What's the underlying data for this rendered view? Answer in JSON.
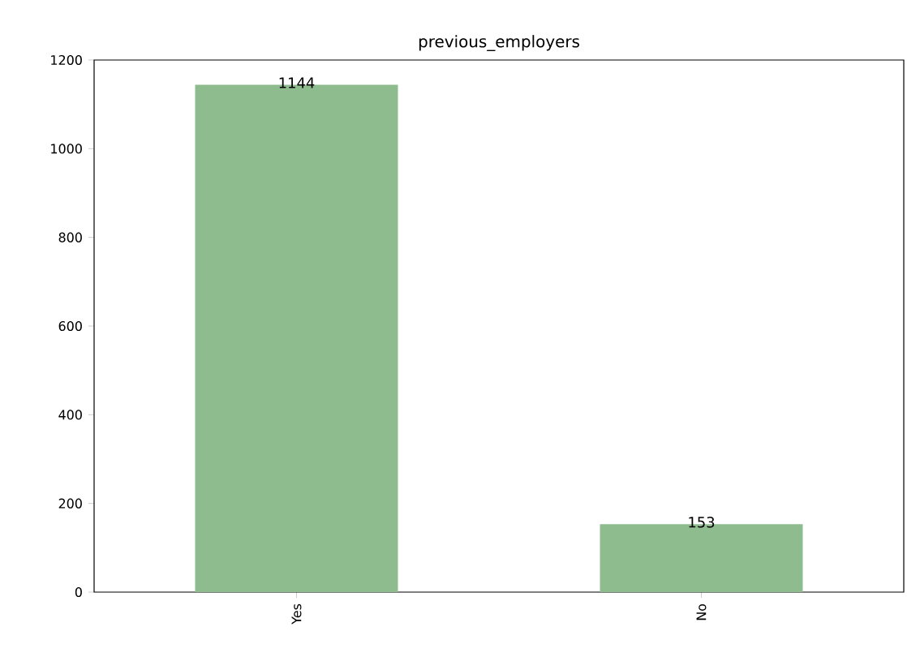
{
  "chart_data": {
    "type": "bar",
    "title": "previous_employers",
    "categories": [
      "Yes",
      "No"
    ],
    "values": [
      1144,
      153
    ],
    "color": "#8fbc8f",
    "ylim": [
      0,
      1200
    ],
    "yticks": [
      0,
      200,
      400,
      600,
      800,
      1000,
      1200
    ],
    "data_labels": true,
    "grid": false
  }
}
